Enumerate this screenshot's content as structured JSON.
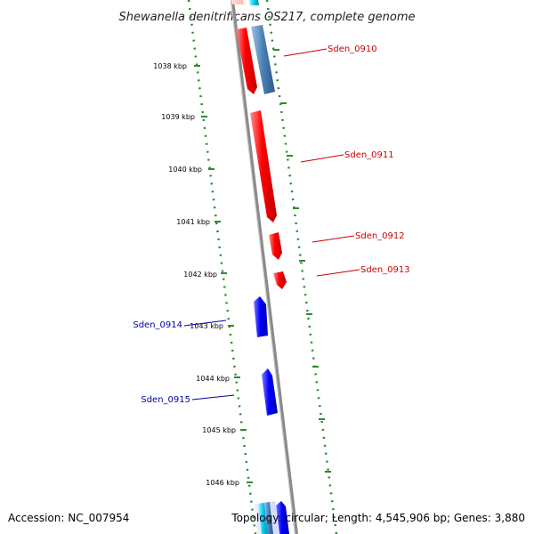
{
  "title": "Shewanella denitrificans OS217, complete genome",
  "footer": {
    "accession": "Accession: NC_007954",
    "summary": "Topology: circular; Length: 4,545,906 bp; Genes: 3,880"
  },
  "kbp_labels": [
    "1038 kbp",
    "1039 kbp",
    "1040 kbp",
    "1041 kbp",
    "1042 kbp",
    "1043 kbp",
    "1044 kbp",
    "1045 kbp",
    "1046 kbp"
  ],
  "gene_labels": [
    "Sden_0910",
    "Sden_0911",
    "Sden_0912",
    "Sden_0913",
    "Sden_0914",
    "Sden_0915"
  ],
  "colors": {
    "forward_gene": "#ff0000",
    "reverse_gene": "#0000ff",
    "steel_gene": "#4a7fb5",
    "cyan_gene": "#00ccee",
    "backbone": "#808080",
    "ruler": "#2e8b2e",
    "forward_label": "#cc0000",
    "reverse_label": "#0000aa"
  }
}
